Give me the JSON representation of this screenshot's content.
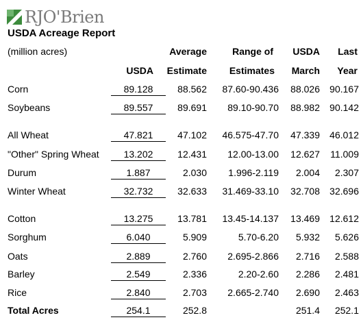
{
  "brand": {
    "logo_text": "RJO'Brien",
    "accent": "#3d8b3d"
  },
  "title": "USDA Acreage Report",
  "units_label": "(million acres)",
  "headers": {
    "usda": "USDA",
    "avg_top": "Average",
    "avg_bottom": "Estimate",
    "range_top": "Range of",
    "range_bottom": "Estimates",
    "march_top": "USDA",
    "march_bottom": "March",
    "last_top": "Last",
    "last_bottom": "Year"
  },
  "rows": [
    {
      "label": "Corn",
      "usda": "89.128",
      "avg": "88.562",
      "range": "87.60-90.436",
      "march": "88.026",
      "last": "90.167"
    },
    {
      "label": "Soybeans",
      "usda": "89.557",
      "avg": "89.691",
      "range": "89.10-90.70",
      "march": "88.982",
      "last": "90.142"
    },
    {
      "label": "All Wheat",
      "usda": "47.821",
      "avg": "47.102",
      "range": "46.575-47.70",
      "march": "47.339",
      "last": "46.012"
    },
    {
      "label": "\"Other\" Spring Wheat",
      "usda": "13.202",
      "avg": "12.431",
      "range": "12.00-13.00",
      "march": "12.627",
      "last": "11.009"
    },
    {
      "label": "Durum",
      "usda": "1.887",
      "avg": "2.030",
      "range": "1.996-2.119",
      "march": "2.004",
      "last": "2.307"
    },
    {
      "label": "Winter Wheat",
      "usda": "32.732",
      "avg": "32.633",
      "range": "31.469-33.10",
      "march": "32.708",
      "last": "32.696"
    },
    {
      "label": "Cotton",
      "usda": "13.275",
      "avg": "13.781",
      "range": "13.45-14.137",
      "march": "13.469",
      "last": "12.612"
    },
    {
      "label": "Sorghum",
      "usda": "6.040",
      "avg": "5.909",
      "range": "5.70-6.20",
      "march": "5.932",
      "last": "5.626"
    },
    {
      "label": "Oats",
      "usda": "2.889",
      "avg": "2.760",
      "range": "2.695-2.866",
      "march": "2.716",
      "last": "2.588"
    },
    {
      "label": "Barley",
      "usda": "2.549",
      "avg": "2.336",
      "range": "2.20-2.60",
      "march": "2.286",
      "last": "2.481"
    },
    {
      "label": "Rice",
      "usda": "2.840",
      "avg": "2.703",
      "range": "2.665-2.740",
      "march": "2.690",
      "last": "2.463"
    },
    {
      "label": "Total Acres",
      "usda": "254.1",
      "avg": "252.8",
      "range": "",
      "march": "251.4",
      "last": "252.1"
    }
  ]
}
